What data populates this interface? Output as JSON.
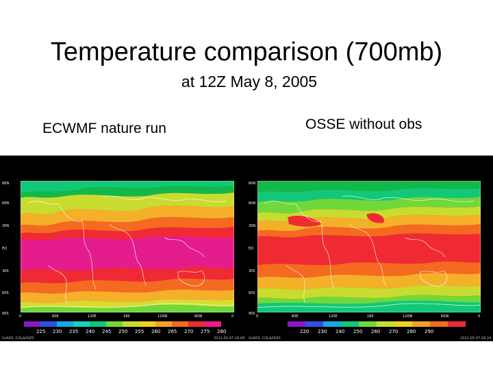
{
  "title": "Temperature comparison (700mb)",
  "subtitle": "at 12Z May 8, 2005",
  "panels": {
    "left": {
      "label": "ECWMF nature run",
      "lat_ticks": [
        "80N",
        "60N",
        "30N",
        "EQ",
        "30S",
        "60S",
        "90S"
      ],
      "lon_ticks": [
        "0",
        "60E",
        "120E",
        "180",
        "120W",
        "60W",
        "0"
      ],
      "colorbar": {
        "values": [
          "225",
          "230",
          "235",
          "240",
          "245",
          "250",
          "255",
          "260",
          "265",
          "270",
          "275",
          "280"
        ],
        "colors": [
          "#8a18c8",
          "#3050e6",
          "#17a8e6",
          "#1ad0c0",
          "#11c878",
          "#70d83a",
          "#c8dc30",
          "#f0d020",
          "#f4a028",
          "#f46a20",
          "#f02a32",
          "#f0188c"
        ]
      },
      "footer_left": "GrADS: COLA/IGES",
      "footer_right": "2012-05-07-18:08"
    },
    "right": {
      "label": "OSSE without obs",
      "lat_ticks": [
        "80N",
        "60N",
        "30N",
        "EQ",
        "30S",
        "60S",
        "90S"
      ],
      "lon_ticks": [
        "0",
        "60E",
        "120E",
        "180",
        "120W",
        "60W",
        "0"
      ],
      "colorbar": {
        "values": [
          "220",
          "230",
          "240",
          "250",
          "260",
          "270",
          "280",
          "290"
        ],
        "colors": [
          "#8a18c8",
          "#3050e6",
          "#17a8e6",
          "#11c878",
          "#70d83a",
          "#c8dc30",
          "#f0d020",
          "#f4a028",
          "#f46a20",
          "#f02a32"
        ]
      },
      "footer_left": "GrADS: COLA/IGES",
      "footer_right": "2012-05-07-18:24"
    }
  }
}
